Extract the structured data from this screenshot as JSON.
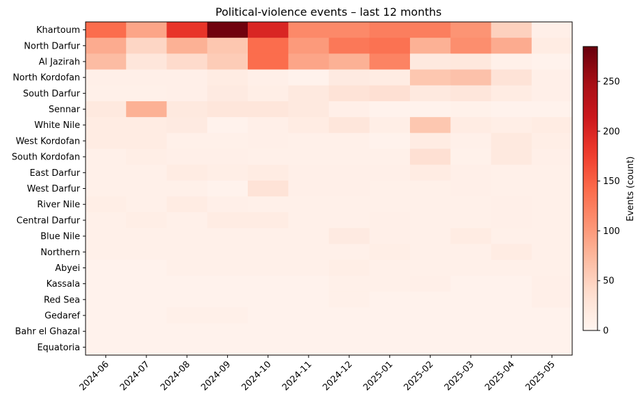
{
  "chart_data": {
    "type": "heatmap",
    "title": "Political-violence events – last 12 months",
    "xlabel": "",
    "ylabel": "",
    "colorbar_label": "Events (count)",
    "colormap": "Reds",
    "color_range": [
      0,
      285
    ],
    "colorbar_ticks": [
      0,
      50,
      100,
      150,
      200,
      250
    ],
    "x": [
      "2024-06",
      "2024-07",
      "2024-08",
      "2024-09",
      "2024-10",
      "2024-11",
      "2024-12",
      "2025-01",
      "2025-02",
      "2025-03",
      "2025-04",
      "2025-05"
    ],
    "y": [
      "Khartoum",
      "North Darfur",
      "Al Jazirah",
      "North Kordofan",
      "South Darfur",
      "Sennar",
      "White Nile",
      "West Kordofan",
      "South Kordofan",
      "East Darfur",
      "West Darfur",
      "River Nile",
      "Central Darfur",
      "Blue Nile",
      "Northern",
      "Abyei",
      "Kassala",
      "Red Sea",
      "Gedaref",
      "Bahr el Ghazal",
      "Equatoria"
    ],
    "values": [
      [
        140,
        90,
        185,
        280,
        200,
        115,
        115,
        125,
        125,
        105,
        50,
        10
      ],
      [
        85,
        45,
        80,
        60,
        140,
        100,
        130,
        135,
        80,
        110,
        85,
        15
      ],
      [
        70,
        25,
        40,
        55,
        140,
        90,
        80,
        120,
        20,
        22,
        8,
        5
      ],
      [
        10,
        10,
        10,
        15,
        10,
        5,
        18,
        15,
        60,
        65,
        30,
        10
      ],
      [
        8,
        8,
        10,
        18,
        12,
        20,
        30,
        35,
        20,
        25,
        15,
        10
      ],
      [
        20,
        80,
        20,
        25,
        25,
        20,
        10,
        5,
        5,
        7,
        5,
        5
      ],
      [
        15,
        15,
        18,
        5,
        10,
        15,
        25,
        12,
        60,
        15,
        12,
        15
      ],
      [
        15,
        15,
        8,
        8,
        10,
        8,
        8,
        5,
        15,
        8,
        20,
        12
      ],
      [
        8,
        12,
        10,
        10,
        8,
        8,
        8,
        8,
        35,
        7,
        20,
        10
      ],
      [
        8,
        8,
        15,
        12,
        15,
        10,
        10,
        10,
        15,
        10,
        8,
        8
      ],
      [
        8,
        8,
        8,
        5,
        30,
        10,
        10,
        8,
        8,
        10,
        8,
        8
      ],
      [
        12,
        8,
        15,
        10,
        8,
        8,
        8,
        8,
        8,
        8,
        10,
        8
      ],
      [
        8,
        12,
        8,
        15,
        15,
        8,
        8,
        10,
        8,
        8,
        10,
        8
      ],
      [
        8,
        8,
        8,
        8,
        8,
        8,
        18,
        10,
        8,
        15,
        8,
        8
      ],
      [
        8,
        8,
        8,
        8,
        8,
        8,
        8,
        12,
        8,
        8,
        15,
        8
      ],
      [
        5,
        5,
        8,
        8,
        8,
        8,
        12,
        8,
        8,
        8,
        8,
        8
      ],
      [
        5,
        5,
        5,
        5,
        5,
        5,
        8,
        8,
        10,
        5,
        5,
        10
      ],
      [
        5,
        5,
        5,
        5,
        5,
        5,
        8,
        5,
        5,
        5,
        5,
        10
      ],
      [
        5,
        5,
        8,
        8,
        5,
        5,
        5,
        5,
        5,
        5,
        5,
        5
      ],
      [
        5,
        5,
        5,
        5,
        5,
        5,
        5,
        5,
        5,
        5,
        5,
        5
      ],
      [
        5,
        5,
        5,
        5,
        5,
        5,
        5,
        5,
        5,
        5,
        5,
        5
      ]
    ]
  }
}
